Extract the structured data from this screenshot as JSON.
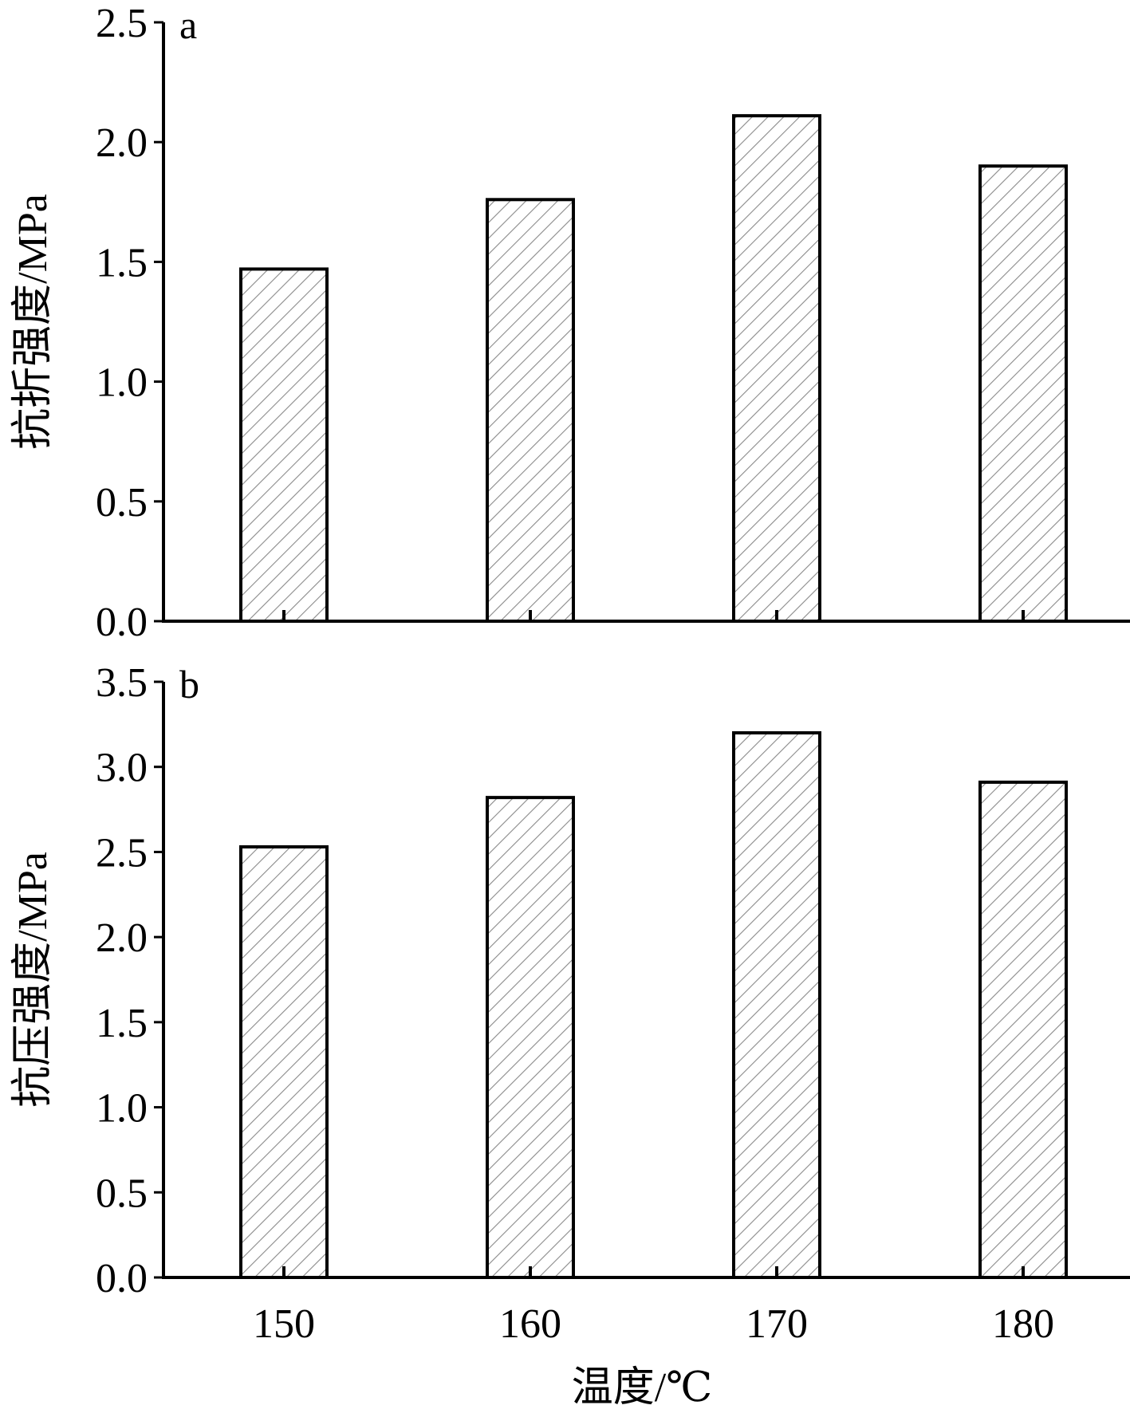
{
  "chart_data": [
    {
      "type": "bar",
      "panel_label": "a",
      "ylabel": "抗折强度/MPa",
      "xlabel": "",
      "categories": [
        "150",
        "160",
        "170",
        "180"
      ],
      "values": [
        1.47,
        1.76,
        2.11,
        1.9
      ],
      "ylim": [
        0,
        2.5
      ],
      "yticks": [
        "0.0",
        "0.5",
        "1.0",
        "1.5",
        "2.0",
        "2.5"
      ],
      "bar_pattern": "diagonal-hatch",
      "grid": false,
      "legend": "none"
    },
    {
      "type": "bar",
      "panel_label": "b",
      "ylabel": "抗压强度/MPa",
      "xlabel": "温度/℃",
      "categories": [
        "150",
        "160",
        "170",
        "180"
      ],
      "values": [
        2.53,
        2.82,
        3.2,
        2.91
      ],
      "ylim": [
        0,
        3.5
      ],
      "yticks": [
        "0.0",
        "0.5",
        "1.0",
        "1.5",
        "2.0",
        "2.5",
        "3.0",
        "3.5"
      ],
      "bar_pattern": "diagonal-hatch",
      "grid": false,
      "legend": "none"
    }
  ],
  "colors": {
    "bar_fill": "#ffffff",
    "hatch": "#888888",
    "axis": "#000000"
  }
}
